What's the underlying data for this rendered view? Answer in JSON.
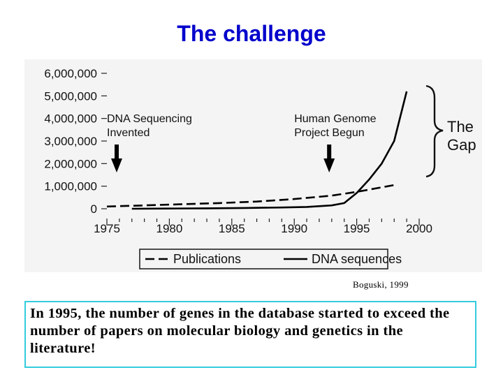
{
  "page": {
    "title": "The challenge",
    "credit": "Boguski, 1999",
    "note": "In 1995, the number of genes in the database started to exceed the number of papers on molecular biology and genetics in the literature!"
  },
  "chart_data": {
    "type": "line",
    "xlim": [
      1975,
      2000
    ],
    "ylim": [
      0,
      6000000
    ],
    "xticks": [
      "1975",
      "1980",
      "1985",
      "1990",
      "1995",
      "2000"
    ],
    "yticks": [
      "0",
      "1,000,000",
      "2,000,000",
      "3,000,000",
      "4,000,000",
      "5,000,000",
      "6,000,000"
    ],
    "grid": false,
    "legend_position": "bottom",
    "series": [
      {
        "name": "Publications",
        "style": "dashed",
        "color": "#000000",
        "x": [
          1975,
          1978,
          1981,
          1984,
          1987,
          1990,
          1993,
          1995,
          1998
        ],
        "y": [
          100000,
          150000,
          200000,
          250000,
          320000,
          430000,
          580000,
          750000,
          1050000
        ]
      },
      {
        "name": "DNA sequences",
        "style": "solid",
        "color": "#000000",
        "x": [
          1977,
          1980,
          1983,
          1986,
          1989,
          1991,
          1993,
          1994,
          1995,
          1996,
          1997,
          1998,
          1999
        ],
        "y": [
          0,
          10000,
          20000,
          35000,
          55000,
          80000,
          150000,
          250000,
          700000,
          1300000,
          2000000,
          3000000,
          5200000
        ]
      }
    ],
    "annotations": [
      {
        "text_lines": [
          "DNA Sequencing",
          "Invented"
        ],
        "x": 1975,
        "arrow": true
      },
      {
        "text_lines": [
          "Human Genome",
          "Project Begun"
        ],
        "x": 1990,
        "arrow": true
      }
    ],
    "brace_label": [
      "The",
      "Gap"
    ]
  }
}
